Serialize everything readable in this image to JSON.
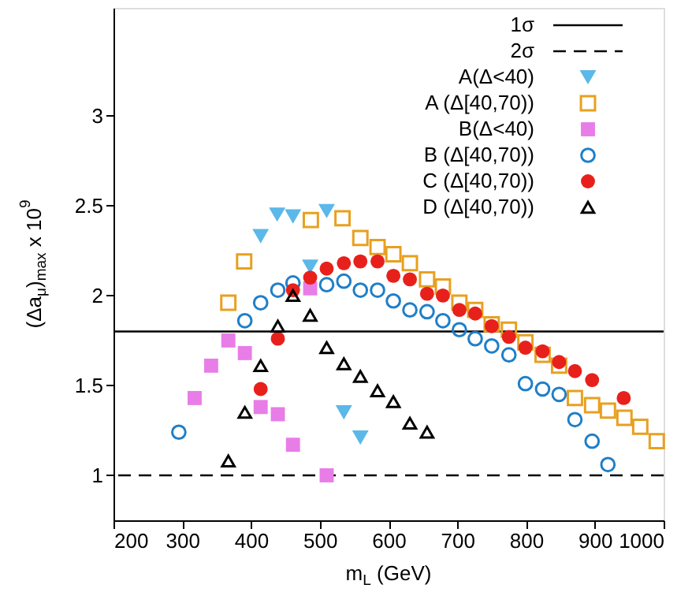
{
  "chart_data": {
    "type": "scatter",
    "xlabel": "m$_{L}$ (GeV)",
    "ylabel": "(Δa$_{μ}$)$_{max}$ x 10$^{9}$",
    "xlim": [
      200,
      1000
    ],
    "xticks": [
      200,
      300,
      400,
      500,
      600,
      700,
      800,
      900,
      1000
    ],
    "ylim": [
      0.75,
      3.6
    ],
    "yticks": [
      1,
      1.5,
      2,
      2.5,
      3
    ],
    "legend": "top right",
    "ref_lines": [
      {
        "axis": "y",
        "value": 1.8,
        "label": "1σ",
        "line_style": "solid",
        "color": "#000000"
      },
      {
        "axis": "y",
        "value": 1.0,
        "label": "2σ",
        "line_style": "dashed",
        "color": "#000000"
      }
    ],
    "series": [
      {
        "name": "A(Δ<40)",
        "color": "#5bb8e8",
        "marker": "triangle-down",
        "x": [
          414,
          438,
          461,
          486,
          510,
          535,
          559
        ],
        "values": [
          2.33,
          2.45,
          2.44,
          2.16,
          2.47,
          1.35,
          1.21
        ]
      },
      {
        "name": "A (Δ[40,70))",
        "color": "#e8a020",
        "marker": "square-open",
        "x": [
          367,
          390,
          487,
          533,
          559,
          584,
          607,
          631,
          656,
          679,
          703,
          726,
          750,
          775,
          799,
          824,
          848,
          871,
          896,
          919,
          943,
          966,
          990
        ],
        "values": [
          1.96,
          2.19,
          2.42,
          2.43,
          2.32,
          2.27,
          2.23,
          2.18,
          2.09,
          2.05,
          1.96,
          1.92,
          1.84,
          1.81,
          1.74,
          1.67,
          1.61,
          1.43,
          1.39,
          1.36,
          1.32,
          1.27,
          1.19
        ]
      },
      {
        "name": "B(Δ<40)",
        "color": "#e87de8",
        "marker": "square",
        "x": [
          318,
          342,
          367,
          391,
          414,
          439,
          461,
          486,
          510
        ],
        "values": [
          1.43,
          1.61,
          1.75,
          1.68,
          1.38,
          1.34,
          1.17,
          2.04,
          1.0
        ]
      },
      {
        "name": "B (Δ[40,70))",
        "color": "#1f7fc8",
        "marker": "circle-open",
        "x": [
          295,
          391,
          414,
          439,
          461,
          510,
          535,
          559,
          584,
          607,
          631,
          656,
          679,
          703,
          726,
          750,
          775,
          799,
          824,
          848,
          871,
          896,
          919
        ],
        "values": [
          1.24,
          1.86,
          1.96,
          2.03,
          2.07,
          2.06,
          2.08,
          2.03,
          2.03,
          1.97,
          1.92,
          1.91,
          1.86,
          1.81,
          1.76,
          1.72,
          1.67,
          1.51,
          1.48,
          1.45,
          1.31,
          1.19,
          1.06
        ]
      },
      {
        "name": "C (Δ[40,70))",
        "color": "#e8201c",
        "marker": "circle",
        "x": [
          414,
          439,
          461,
          486,
          510,
          535,
          559,
          584,
          607,
          631,
          656,
          679,
          703,
          726,
          750,
          775,
          799,
          824,
          848,
          871,
          896,
          942
        ],
        "values": [
          1.48,
          1.76,
          2.03,
          2.1,
          2.15,
          2.18,
          2.19,
          2.19,
          2.11,
          2.09,
          2.01,
          2.0,
          1.92,
          1.9,
          1.83,
          1.77,
          1.71,
          1.69,
          1.63,
          1.58,
          1.53,
          1.43
        ]
      },
      {
        "name": "D (Δ[40,70))",
        "color": "#000000",
        "marker": "triangle-open",
        "x": [
          367,
          391,
          414,
          439,
          461,
          486,
          510,
          535,
          559,
          584,
          607,
          631,
          656
        ],
        "values": [
          1.08,
          1.35,
          1.61,
          1.83,
          2.0,
          1.89,
          1.71,
          1.62,
          1.55,
          1.47,
          1.41,
          1.29,
          1.24
        ]
      }
    ]
  }
}
